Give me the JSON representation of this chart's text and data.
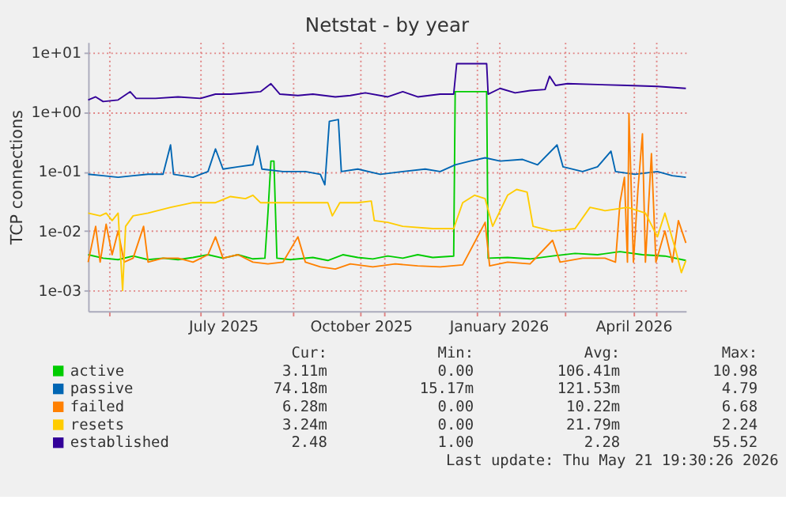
{
  "chart_data": {
    "type": "line",
    "title": "Netstat - by year",
    "ylabel": "TCP connections",
    "log": true,
    "grid": true,
    "legend": "bottom",
    "marker": "none",
    "line_style": "solid",
    "xlim": [
      "2025-04-17",
      "2026-05-21"
    ],
    "xticks": [
      {
        "value": "2025-05-01",
        "label": null
      },
      {
        "value": "2025-07-01",
        "label": null
      },
      {
        "value": "2025-09-01",
        "label": null
      },
      {
        "value": "2025-11-01",
        "label": null
      },
      {
        "value": "2026-01-01",
        "label": null
      },
      {
        "value": "2026-03-01",
        "label": null
      },
      {
        "value": "2026-05-01",
        "label": null
      },
      {
        "value": "2025-07-16",
        "label": "July 2025"
      },
      {
        "value": "2025-10-16",
        "label": "October 2025"
      },
      {
        "value": "2026-01-16",
        "label": "January 2026"
      },
      {
        "value": "2026-04-16",
        "label": "April 2026"
      }
    ],
    "ylim": [
      0.00045,
      15
    ],
    "yticks": [
      {
        "value": 0.001,
        "label": "1e-03"
      },
      {
        "value": 0.01,
        "label": "1e-02"
      },
      {
        "value": 0.1,
        "label": "1e-01"
      },
      {
        "value": 1,
        "label": "1e+00"
      },
      {
        "value": 10,
        "label": "1e+01"
      }
    ],
    "series": [
      {
        "name": "active",
        "color": "#00cc00",
        "x": [
          "2025-04-17",
          "2025-04-27",
          "2025-05-07",
          "2025-05-17",
          "2025-05-27",
          "2025-06-06",
          "2025-06-16",
          "2025-06-26",
          "2025-07-06",
          "2025-07-16",
          "2025-07-26",
          "2025-08-05",
          "2025-08-13",
          "2025-08-15",
          "2025-08-17",
          "2025-08-19",
          "2025-08-21",
          "2025-08-30",
          "2025-09-14",
          "2025-09-24",
          "2025-10-04",
          "2025-10-14",
          "2025-10-24",
          "2025-11-03",
          "2025-11-13",
          "2025-11-23",
          "2025-12-03",
          "2025-12-17",
          "2025-12-18",
          "2026-01-08",
          "2026-01-09",
          "2026-01-22",
          "2026-02-06",
          "2026-02-21",
          "2026-03-08",
          "2026-03-23",
          "2026-04-07",
          "2026-04-22",
          "2026-05-07",
          "2026-05-21"
        ],
        "values": [
          0.004,
          0.0035,
          0.0033,
          0.0038,
          0.0033,
          0.0035,
          0.0033,
          0.0036,
          0.004,
          0.0035,
          0.004,
          0.0034,
          0.0035,
          0.02,
          0.15,
          0.15,
          0.0035,
          0.0033,
          0.0036,
          0.0032,
          0.004,
          0.0036,
          0.0034,
          0.0038,
          0.0035,
          0.004,
          0.0036,
          0.0038,
          2.2,
          2.2,
          0.0035,
          0.0036,
          0.0034,
          0.0038,
          0.0042,
          0.004,
          0.0045,
          0.004,
          0.0038,
          0.0032
        ]
      },
      {
        "name": "passive",
        "color": "#0066b3",
        "x": [
          "2025-04-17",
          "2025-04-27",
          "2025-05-07",
          "2025-05-17",
          "2025-05-27",
          "2025-06-06",
          "2025-06-11",
          "2025-06-13",
          "2025-06-26",
          "2025-07-06",
          "2025-07-11",
          "2025-07-16",
          "2025-07-26",
          "2025-08-05",
          "2025-08-08",
          "2025-08-11",
          "2025-08-25",
          "2025-09-09",
          "2025-09-19",
          "2025-09-22",
          "2025-09-25",
          "2025-10-01",
          "2025-10-03",
          "2025-10-14",
          "2025-10-29",
          "2025-11-13",
          "2025-11-28",
          "2025-12-08",
          "2025-12-18",
          "2025-12-28",
          "2026-01-07",
          "2026-01-17",
          "2026-02-01",
          "2026-02-11",
          "2026-02-24",
          "2026-02-28",
          "2026-03-13",
          "2026-03-23",
          "2026-04-01",
          "2026-04-04",
          "2026-04-17",
          "2026-05-02",
          "2026-05-12",
          "2026-05-21"
        ],
        "values": [
          0.09,
          0.085,
          0.08,
          0.085,
          0.09,
          0.09,
          0.28,
          0.09,
          0.08,
          0.1,
          0.24,
          0.11,
          0.12,
          0.13,
          0.27,
          0.11,
          0.1,
          0.1,
          0.09,
          0.06,
          0.7,
          0.75,
          0.1,
          0.11,
          0.09,
          0.1,
          0.11,
          0.1,
          0.13,
          0.15,
          0.17,
          0.15,
          0.16,
          0.13,
          0.28,
          0.12,
          0.1,
          0.12,
          0.22,
          0.1,
          0.09,
          0.1,
          0.085,
          0.08
        ]
      },
      {
        "name": "failed",
        "color": "#ff8000",
        "x": [
          "2025-04-17",
          "2025-04-22",
          "2025-04-25",
          "2025-04-29",
          "2025-05-03",
          "2025-05-07",
          "2025-05-11",
          "2025-05-17",
          "2025-05-24",
          "2025-05-27",
          "2025-06-06",
          "2025-06-16",
          "2025-06-26",
          "2025-07-06",
          "2025-07-11",
          "2025-07-16",
          "2025-07-26",
          "2025-08-05",
          "2025-08-15",
          "2025-08-25",
          "2025-09-04",
          "2025-09-09",
          "2025-09-19",
          "2025-09-29",
          "2025-10-09",
          "2025-10-24",
          "2025-11-08",
          "2025-11-23",
          "2025-12-08",
          "2025-12-23",
          "2026-01-07",
          "2026-01-10",
          "2026-01-22",
          "2026-02-06",
          "2026-02-21",
          "2026-02-26",
          "2026-03-13",
          "2026-03-28",
          "2026-04-04",
          "2026-04-07",
          "2026-04-10",
          "2026-04-12",
          "2026-04-13",
          "2026-04-16",
          "2026-04-19",
          "2026-04-22",
          "2026-04-24",
          "2026-04-28",
          "2026-05-01",
          "2026-05-07",
          "2026-05-12",
          "2026-05-16",
          "2026-05-21"
        ],
        "values": [
          0.003,
          0.012,
          0.003,
          0.013,
          0.004,
          0.01,
          0.003,
          0.0035,
          0.012,
          0.003,
          0.0035,
          0.0035,
          0.003,
          0.004,
          0.008,
          0.0035,
          0.004,
          0.003,
          0.0028,
          0.003,
          0.008,
          0.003,
          0.0025,
          0.0023,
          0.0028,
          0.0025,
          0.0028,
          0.0026,
          0.0025,
          0.0027,
          0.014,
          0.0026,
          0.003,
          0.0028,
          0.007,
          0.003,
          0.0035,
          0.0035,
          0.003,
          0.03,
          0.08,
          0.003,
          0.95,
          0.003,
          0.05,
          0.43,
          0.003,
          0.2,
          0.003,
          0.01,
          0.003,
          0.015,
          0.0063
        ]
      },
      {
        "name": "resets",
        "color": "#ffcc00",
        "x": [
          "2025-04-17",
          "2025-04-25",
          "2025-04-29",
          "2025-05-03",
          "2025-05-07",
          "2025-05-10",
          "2025-05-12",
          "2025-05-17",
          "2025-05-27",
          "2025-06-11",
          "2025-06-26",
          "2025-07-11",
          "2025-07-21",
          "2025-07-31",
          "2025-08-05",
          "2025-08-10",
          "2025-08-25",
          "2025-09-14",
          "2025-09-24",
          "2025-09-27",
          "2025-10-02",
          "2025-10-14",
          "2025-10-23",
          "2025-10-25",
          "2025-11-03",
          "2025-11-13",
          "2025-12-03",
          "2025-12-17",
          "2025-12-23",
          "2025-12-31",
          "2026-01-07",
          "2026-01-12",
          "2026-01-22",
          "2026-01-28",
          "2026-02-04",
          "2026-02-08",
          "2026-02-21",
          "2026-03-08",
          "2026-03-18",
          "2026-03-28",
          "2026-04-12",
          "2026-04-24",
          "2026-05-02",
          "2026-05-07",
          "2026-05-14",
          "2026-05-18",
          "2026-05-21"
        ],
        "values": [
          0.02,
          0.018,
          0.02,
          0.015,
          0.02,
          0.001,
          0.012,
          0.018,
          0.02,
          0.025,
          0.03,
          0.03,
          0.038,
          0.035,
          0.04,
          0.03,
          0.03,
          0.03,
          0.03,
          0.018,
          0.03,
          0.03,
          0.032,
          0.015,
          0.014,
          0.012,
          0.011,
          0.011,
          0.03,
          0.04,
          0.035,
          0.012,
          0.04,
          0.05,
          0.045,
          0.012,
          0.01,
          0.011,
          0.025,
          0.022,
          0.025,
          0.02,
          0.008,
          0.02,
          0.005,
          0.002,
          0.0032
        ]
      },
      {
        "name": "established",
        "color": "#330099",
        "x": [
          "2025-04-17",
          "2025-04-22",
          "2025-04-27",
          "2025-05-07",
          "2025-05-15",
          "2025-05-19",
          "2025-06-01",
          "2025-06-16",
          "2025-07-01",
          "2025-07-11",
          "2025-07-21",
          "2025-07-31",
          "2025-08-10",
          "2025-08-17",
          "2025-08-23",
          "2025-09-04",
          "2025-09-14",
          "2025-09-29",
          "2025-10-09",
          "2025-10-19",
          "2025-11-03",
          "2025-11-13",
          "2025-11-23",
          "2025-12-08",
          "2025-12-17",
          "2025-12-19",
          "2026-01-08",
          "2026-01-09",
          "2026-01-17",
          "2026-01-27",
          "2026-02-06",
          "2026-02-16",
          "2026-02-19",
          "2026-02-23",
          "2026-03-03",
          "2026-03-23",
          "2026-04-12",
          "2026-05-02",
          "2026-05-21"
        ],
        "values": [
          1.6,
          1.8,
          1.5,
          1.6,
          2.2,
          1.7,
          1.7,
          1.8,
          1.7,
          2.0,
          2.0,
          2.1,
          2.2,
          3.0,
          2.0,
          1.9,
          2.0,
          1.8,
          1.9,
          2.1,
          1.8,
          2.2,
          1.8,
          2.0,
          2.0,
          6.5,
          6.5,
          2.0,
          2.5,
          2.1,
          2.3,
          2.4,
          4.0,
          2.8,
          3.0,
          2.9,
          2.8,
          2.7,
          2.5
        ]
      }
    ],
    "annotations": [
      "Cur:",
      "Min:",
      "Avg:",
      "Max:",
      "3.11m",
      "0.00",
      "106.41m",
      "10.98",
      "74.18m",
      "15.17m",
      "121.53m",
      "4.79",
      "6.28m",
      "0.00",
      "10.22m",
      "6.68",
      "3.24m",
      "0.00",
      "21.79m",
      "2.24",
      "2.48",
      "1.00",
      "2.28",
      "55.52",
      "Last update: Thu May 21 19:30:26 2026"
    ]
  }
}
